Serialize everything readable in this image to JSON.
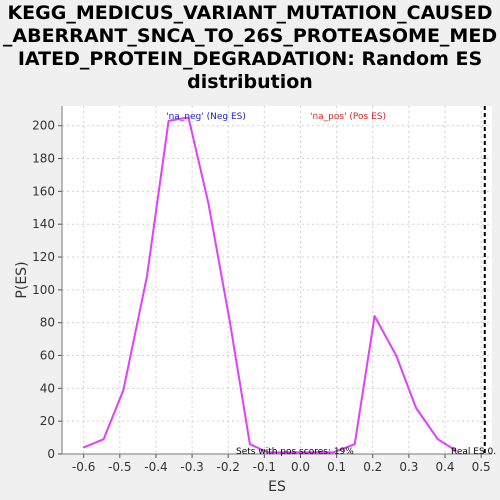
{
  "title_lines": [
    "KEGG_MEDICUS_VARIANT_MUTATION_CAUSED",
    "_ABERRANT_SNCA_TO_26S_PROTEASOME_MED",
    "IATED_PROTEIN_DEGRADATION: Random ES",
    "distribution"
  ],
  "chart_data": {
    "type": "line",
    "title": "KEGG_MEDICUS_VARIANT_MUTATION_CAUSED_ABERRANT_SNCA_TO_26S_PROTEASOME_MEDIATED_PROTEIN_DEGRADATION: Random ES distribution",
    "xlabel": "ES",
    "ylabel": "P(ES)",
    "xlim": [
      -0.66,
      0.53
    ],
    "ylim": [
      0,
      212
    ],
    "x_ticks": [
      "-0.6",
      "-0.5",
      "-0.4",
      "-0.3",
      "-0.2",
      "-0.1",
      "0.0",
      "0.1",
      "0.2",
      "0.3",
      "0.4",
      "0.5"
    ],
    "y_ticks": [
      "0",
      "20",
      "40",
      "60",
      "80",
      "100",
      "120",
      "140",
      "160",
      "180",
      "200"
    ],
    "grid": true,
    "series": [
      {
        "color": "#e040fb",
        "x": [
          -0.6,
          -0.545,
          -0.49,
          -0.425,
          -0.365,
          -0.31,
          -0.255,
          -0.195,
          -0.14,
          -0.09,
          0.09,
          0.15,
          0.205,
          0.265,
          0.32,
          0.38,
          0.43
        ],
        "y": [
          4,
          9,
          39,
          108,
          203,
          205,
          153,
          80,
          6,
          1,
          1,
          6,
          84,
          60,
          28,
          9,
          2
        ]
      }
    ],
    "real_es": 0.51,
    "legend": [
      {
        "text": "'na_neg' (Neg ES)",
        "color": "#2222cc"
      },
      {
        "text": "'na_pos' (Pos ES)",
        "color": "#dd2222"
      }
    ],
    "annotations": {
      "pos_scores": "Sets with pos scores: 19%",
      "real_es": "Real ES 0."
    }
  }
}
